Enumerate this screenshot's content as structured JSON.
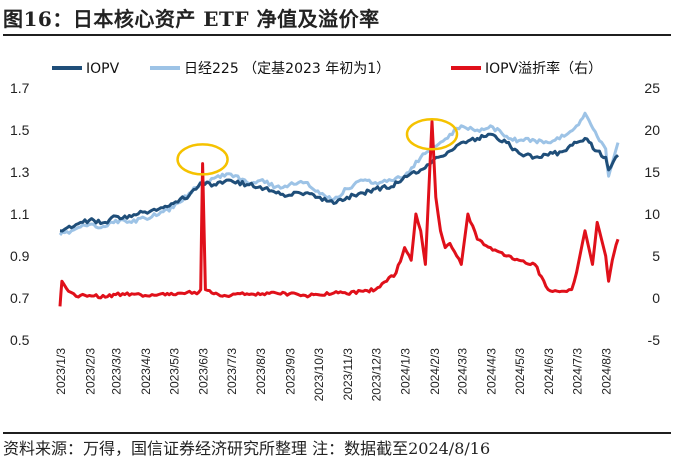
{
  "title": "图16：日本核心资产 ETF 净值及溢价率",
  "source": "资料来源：万得，国信证券经济研究所整理   注：数据截至2024/8/16",
  "colors": {
    "iopv": "#1f4e79",
    "nav": "#9dc3e6",
    "premium": "#e0101a",
    "highlight": "#f5c200"
  },
  "chart_data": {
    "type": "line",
    "x_ticks": [
      "2023/1/3",
      "2023/2/3",
      "2023/3/3",
      "2023/4/3",
      "2023/5/3",
      "2023/6/3",
      "2023/7/3",
      "2023/8/3",
      "2023/9/3",
      "2023/10/3",
      "2023/11/3",
      "2023/12/3",
      "2024/1/3",
      "2024/2/3",
      "2024/3/3",
      "2024/4/3",
      "2024/5/3",
      "2024/6/3",
      "2024/7/3",
      "2024/8/3"
    ],
    "y_left": {
      "min": 0.5,
      "max": 1.7,
      "ticks": [
        "0.5",
        "0.7",
        "0.9",
        "1.1",
        "1.3",
        "1.5",
        "1.7"
      ]
    },
    "y_right": {
      "min": -5,
      "max": 25,
      "ticks": [
        "-5",
        "0",
        "5",
        "10",
        "15",
        "20",
        "25"
      ]
    },
    "series": [
      {
        "name": "IOPV",
        "axis": "left",
        "key": "iopv",
        "x": [
          "2023/1/3",
          "2023/1/20",
          "2023/2/3",
          "2023/2/20",
          "2023/3/3",
          "2023/3/15",
          "2023/4/3",
          "2023/4/20",
          "2023/5/3",
          "2023/5/20",
          "2023/6/3",
          "2023/6/15",
          "2023/7/3",
          "2023/7/20",
          "2023/8/3",
          "2023/8/20",
          "2023/9/3",
          "2023/9/20",
          "2023/10/3",
          "2023/10/20",
          "2023/11/3",
          "2023/11/20",
          "2023/12/3",
          "2023/12/20",
          "2024/1/3",
          "2024/1/20",
          "2024/2/3",
          "2024/2/20",
          "2024/3/3",
          "2024/3/20",
          "2024/4/3",
          "2024/4/20",
          "2024/5/3",
          "2024/5/20",
          "2024/6/3",
          "2024/6/20",
          "2024/7/3",
          "2024/7/12",
          "2024/7/25",
          "2024/8/3",
          "2024/8/6",
          "2024/8/16"
        ],
        "y": [
          1.02,
          1.05,
          1.07,
          1.06,
          1.09,
          1.08,
          1.11,
          1.13,
          1.15,
          1.19,
          1.25,
          1.24,
          1.26,
          1.24,
          1.23,
          1.2,
          1.19,
          1.2,
          1.18,
          1.15,
          1.18,
          1.2,
          1.22,
          1.23,
          1.28,
          1.31,
          1.36,
          1.4,
          1.44,
          1.46,
          1.48,
          1.44,
          1.39,
          1.37,
          1.38,
          1.4,
          1.44,
          1.46,
          1.4,
          1.37,
          1.31,
          1.38
        ]
      },
      {
        "name": "日经225 （定基2023 年初为1）",
        "axis": "left",
        "key": "nav",
        "x": [
          "2023/1/3",
          "2023/1/20",
          "2023/2/3",
          "2023/2/20",
          "2023/3/3",
          "2023/3/15",
          "2023/4/3",
          "2023/4/20",
          "2023/5/3",
          "2023/5/20",
          "2023/6/3",
          "2023/6/15",
          "2023/7/3",
          "2023/7/20",
          "2023/8/3",
          "2023/8/20",
          "2023/9/3",
          "2023/9/20",
          "2023/10/3",
          "2023/10/20",
          "2023/11/3",
          "2023/11/20",
          "2023/12/3",
          "2023/12/20",
          "2024/1/3",
          "2024/1/20",
          "2024/2/3",
          "2024/2/20",
          "2024/3/3",
          "2024/3/20",
          "2024/4/3",
          "2024/4/20",
          "2024/5/3",
          "2024/5/20",
          "2024/6/3",
          "2024/6/20",
          "2024/7/3",
          "2024/7/12",
          "2024/7/25",
          "2024/8/3",
          "2024/8/6",
          "2024/8/16"
        ],
        "y": [
          1.0,
          1.03,
          1.05,
          1.04,
          1.07,
          1.06,
          1.08,
          1.11,
          1.13,
          1.2,
          1.25,
          1.27,
          1.29,
          1.25,
          1.26,
          1.23,
          1.24,
          1.25,
          1.21,
          1.17,
          1.22,
          1.26,
          1.25,
          1.26,
          1.28,
          1.37,
          1.42,
          1.48,
          1.52,
          1.5,
          1.52,
          1.47,
          1.45,
          1.45,
          1.44,
          1.47,
          1.52,
          1.58,
          1.47,
          1.41,
          1.28,
          1.44
        ]
      },
      {
        "name": "IOPV溢折率（右）",
        "axis": "right",
        "key": "premium",
        "x": [
          "2023/1/3",
          "2023/1/5",
          "2023/1/12",
          "2023/1/20",
          "2023/2/3",
          "2023/2/20",
          "2023/3/3",
          "2023/3/20",
          "2023/4/3",
          "2023/4/20",
          "2023/5/3",
          "2023/5/20",
          "2023/5/28",
          "2023/6/1",
          "2023/6/3",
          "2023/6/6",
          "2023/6/15",
          "2023/7/3",
          "2023/7/20",
          "2023/8/3",
          "2023/8/20",
          "2023/9/3",
          "2023/9/20",
          "2023/10/3",
          "2023/10/20",
          "2023/11/3",
          "2023/11/20",
          "2023/12/3",
          "2023/12/15",
          "2023/12/25",
          "2024/1/3",
          "2024/1/10",
          "2024/1/15",
          "2024/1/20",
          "2024/1/25",
          "2024/2/1",
          "2024/2/5",
          "2024/2/10",
          "2024/2/15",
          "2024/2/20",
          "2024/3/3",
          "2024/3/10",
          "2024/3/20",
          "2024/4/3",
          "2024/4/20",
          "2024/5/3",
          "2024/5/20",
          "2024/6/3",
          "2024/6/20",
          "2024/6/28",
          "2024/7/3",
          "2024/7/12",
          "2024/7/20",
          "2024/7/25",
          "2024/8/3",
          "2024/8/6",
          "2024/8/10",
          "2024/8/16"
        ],
        "y": [
          -1,
          2,
          0.8,
          0.2,
          0.3,
          0.1,
          0.4,
          0.5,
          0.3,
          0.5,
          0.4,
          0.8,
          0.5,
          1.0,
          16.0,
          1.0,
          0.5,
          0.3,
          0.5,
          0.4,
          0.6,
          0.5,
          0.3,
          0.4,
          0.6,
          0.5,
          0.8,
          1.0,
          2.0,
          3.0,
          6.0,
          4.5,
          10.0,
          8.0,
          4.0,
          21.0,
          12.0,
          8.0,
          6.0,
          6.5,
          4.0,
          10.0,
          7.0,
          6.0,
          5.0,
          4.5,
          4.0,
          1.0,
          0.8,
          1.0,
          3.0,
          8.0,
          4.0,
          9.0,
          5.0,
          2.0,
          4.5,
          7.0
        ]
      }
    ],
    "highlights": [
      {
        "x": "2023/6/3",
        "y_right": 16.5
      },
      {
        "x": "2024/2/1",
        "y_right": 19.5
      }
    ],
    "legend_position": "top",
    "grid": false
  }
}
